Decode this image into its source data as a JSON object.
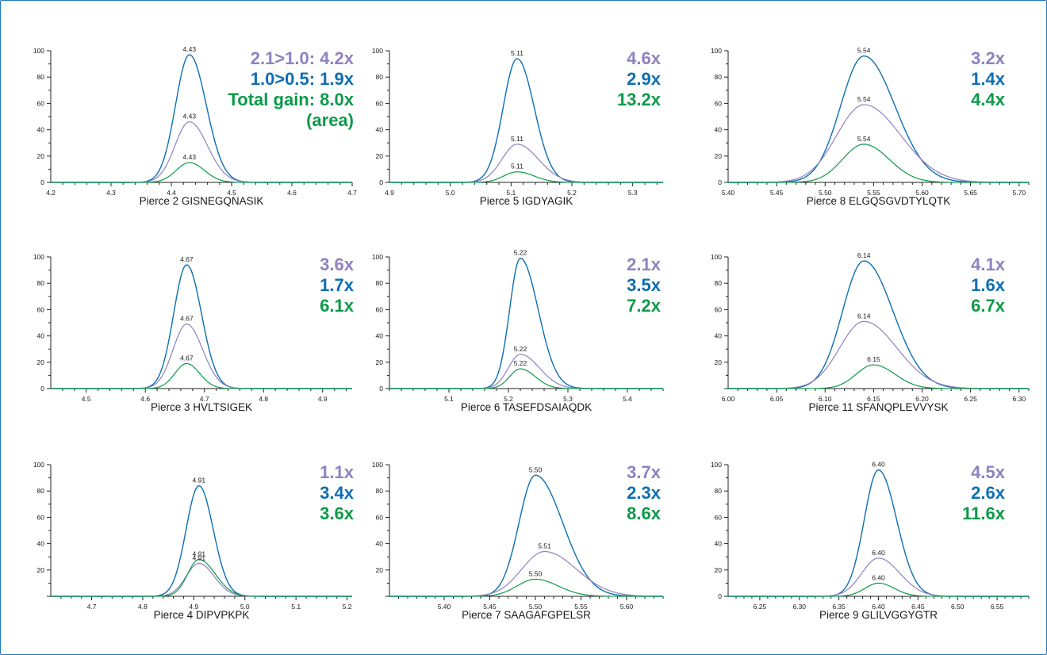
{
  "colors": {
    "purple": "#8f82c1",
    "blue": "#0d6fb3",
    "green": "#0c9a49",
    "axis": "#222222",
    "frame": "#1c78b8"
  },
  "legend_series_order": [
    "2.1>1.0",
    "1.0>0.5",
    "Total gain"
  ],
  "chart_data": [
    {
      "type": "line",
      "title": "Pierce 2 GISNEGQNASIK",
      "xlim": [
        4.2,
        4.7
      ],
      "xticks": [
        "4.2",
        "4.3",
        "4.4",
        "4.5",
        "4.6",
        "4.7"
      ],
      "ylim": [
        0,
        100
      ],
      "yticks": [
        "0",
        "20",
        "40",
        "60",
        "80",
        "100"
      ],
      "gains": [
        "2.1>1.0: 4.2x",
        "1.0>0.5: 1.9x",
        "Total gain: 8.0x",
        "(area)"
      ],
      "series": [
        {
          "color": "blue",
          "peak_rt": 4.43,
          "peak_height": 97,
          "width_left": 0.023,
          "width_right": 0.028,
          "label": "4.43"
        },
        {
          "color": "purple",
          "peak_rt": 4.43,
          "peak_height": 46,
          "width_left": 0.024,
          "width_right": 0.03,
          "label": "4.43"
        },
        {
          "color": "green",
          "peak_rt": 4.43,
          "peak_height": 15,
          "width_left": 0.022,
          "width_right": 0.025,
          "label": "4.43"
        }
      ]
    },
    {
      "type": "line",
      "title": "Pierce 5 IGDYAGIK",
      "xlim": [
        4.9,
        5.35
      ],
      "xticks": [
        "4.9",
        "5.0",
        "5.1",
        "5.2",
        "5.3"
      ],
      "ylim": [
        0,
        100
      ],
      "yticks": [
        "0",
        "20",
        "40",
        "60",
        "80",
        "100"
      ],
      "gains": [
        "4.6x",
        "2.9x",
        "13.2x"
      ],
      "series": [
        {
          "color": "blue",
          "peak_rt": 5.11,
          "peak_height": 94,
          "width_left": 0.023,
          "width_right": 0.028,
          "label": "5.11"
        },
        {
          "color": "purple",
          "peak_rt": 5.11,
          "peak_height": 29,
          "width_left": 0.025,
          "width_right": 0.035,
          "label": "5.11"
        },
        {
          "color": "green",
          "peak_rt": 5.11,
          "peak_height": 8,
          "width_left": 0.022,
          "width_right": 0.028,
          "label": "5.11"
        }
      ]
    },
    {
      "type": "line",
      "title": "Pierce 8 ELGQSGVDTYLQTK",
      "xlim": [
        5.4,
        5.71
      ],
      "xticks": [
        "5.40",
        "5.45",
        "5.50",
        "5.55",
        "5.60",
        "5.65",
        "5.70"
      ],
      "ylim": [
        0,
        100
      ],
      "yticks": [
        "0",
        "20",
        "40",
        "60",
        "80",
        "100"
      ],
      "gains": [
        "3.2x",
        "1.4x",
        "4.4x"
      ],
      "series": [
        {
          "color": "blue",
          "peak_rt": 5.54,
          "peak_height": 96,
          "width_left": 0.024,
          "width_right": 0.032,
          "label": "5.54"
        },
        {
          "color": "purple",
          "peak_rt": 5.54,
          "peak_height": 59,
          "width_left": 0.028,
          "width_right": 0.038,
          "label": "5.54"
        },
        {
          "color": "green",
          "peak_rt": 5.54,
          "peak_height": 29,
          "width_left": 0.022,
          "width_right": 0.026,
          "label": "5.54"
        }
      ]
    },
    {
      "type": "line",
      "title": "Pierce 3 HVLTSIGEK",
      "xlim": [
        4.44,
        4.95
      ],
      "xticks": [
        "4.5",
        "4.6",
        "4.7",
        "4.8",
        "4.9"
      ],
      "ylim": [
        0,
        100
      ],
      "yticks": [
        "0",
        "20",
        "40",
        "60",
        "80",
        "100"
      ],
      "gains": [
        "3.6x",
        "1.7x",
        "6.1x"
      ],
      "series": [
        {
          "color": "blue",
          "peak_rt": 4.67,
          "peak_height": 94,
          "width_left": 0.022,
          "width_right": 0.025,
          "label": "4.67"
        },
        {
          "color": "purple",
          "peak_rt": 4.67,
          "peak_height": 49,
          "width_left": 0.023,
          "width_right": 0.027,
          "label": "4.67"
        },
        {
          "color": "green",
          "peak_rt": 4.67,
          "peak_height": 19,
          "width_left": 0.02,
          "width_right": 0.022,
          "label": "4.67"
        }
      ]
    },
    {
      "type": "line",
      "title": "Pierce 6 TASEFDSAIAQDK",
      "xlim": [
        5.0,
        5.46
      ],
      "xticks": [
        "5.1",
        "5.2",
        "5.3",
        "5.4"
      ],
      "ylim": [
        0,
        100
      ],
      "yticks": [
        "0",
        "20",
        "40",
        "60",
        "80",
        "100"
      ],
      "gains": [
        "2.1x",
        "3.5x",
        "7.2x"
      ],
      "series": [
        {
          "color": "blue",
          "peak_rt": 5.22,
          "peak_height": 99,
          "width_left": 0.018,
          "width_right": 0.03,
          "label": "5.22"
        },
        {
          "color": "purple",
          "peak_rt": 5.22,
          "peak_height": 26,
          "width_left": 0.02,
          "width_right": 0.032,
          "label": "5.22"
        },
        {
          "color": "green",
          "peak_rt": 5.22,
          "peak_height": 15,
          "width_left": 0.018,
          "width_right": 0.025,
          "label": "5.22"
        }
      ]
    },
    {
      "type": "line",
      "title": "Pierce 11 SFANQPLEVVYSK",
      "xlim": [
        6.0,
        6.31
      ],
      "xticks": [
        "6.00",
        "6.05",
        "6.10",
        "6.15",
        "6.20",
        "6.25",
        "6.30"
      ],
      "ylim": [
        0,
        100
      ],
      "yticks": [
        "20",
        "40",
        "60",
        "80",
        "100"
      ],
      "gains": [
        "4.1x",
        "1.6x",
        "6.7x"
      ],
      "series": [
        {
          "color": "blue",
          "peak_rt": 6.14,
          "peak_height": 97,
          "width_left": 0.022,
          "width_right": 0.03,
          "label": "6.14"
        },
        {
          "color": "purple",
          "peak_rt": 6.14,
          "peak_height": 51,
          "width_left": 0.025,
          "width_right": 0.034,
          "label": "6.14"
        },
        {
          "color": "green",
          "peak_rt": 6.15,
          "peak_height": 18,
          "width_left": 0.018,
          "width_right": 0.022,
          "label": "6.15"
        }
      ]
    },
    {
      "type": "line",
      "title": "Pierce 4 DIPVPKPK",
      "xlim": [
        4.62,
        5.21
      ],
      "xticks": [
        "4.7",
        "4.8",
        "4.9",
        "5.0",
        "5.1",
        "5.2"
      ],
      "ylim": [
        0,
        100
      ],
      "yticks": [
        "20",
        "40",
        "60",
        "80",
        "100"
      ],
      "gains": [
        "1.1x",
        "3.4x",
        "3.6x"
      ],
      "series": [
        {
          "color": "blue",
          "peak_rt": 4.91,
          "peak_height": 84,
          "width_left": 0.025,
          "width_right": 0.028,
          "label": "4.91"
        },
        {
          "color": "purple",
          "peak_rt": 4.91,
          "peak_height": 25,
          "width_left": 0.025,
          "width_right": 0.03,
          "label": "4.91"
        },
        {
          "color": "green",
          "peak_rt": 4.91,
          "peak_height": 28,
          "width_left": 0.022,
          "width_right": 0.032,
          "label": "4.91"
        }
      ]
    },
    {
      "type": "line",
      "title": "Pierce 7 SAAGAFGPELSR",
      "xlim": [
        5.34,
        5.64
      ],
      "xticks": [
        "5.40",
        "5.45",
        "5.50",
        "5.55",
        "5.60"
      ],
      "ylim": [
        0,
        100
      ],
      "yticks": [
        "20",
        "40",
        "60",
        "80",
        "100"
      ],
      "gains": [
        "3.7x",
        "2.3x",
        "8.6x"
      ],
      "series": [
        {
          "color": "blue",
          "peak_rt": 5.5,
          "peak_height": 92,
          "width_left": 0.018,
          "width_right": 0.03,
          "label": "5.50"
        },
        {
          "color": "purple",
          "peak_rt": 5.51,
          "peak_height": 34,
          "width_left": 0.025,
          "width_right": 0.035,
          "label": "5.51"
        },
        {
          "color": "green",
          "peak_rt": 5.5,
          "peak_height": 13,
          "width_left": 0.02,
          "width_right": 0.025,
          "label": "5.50"
        }
      ]
    },
    {
      "type": "line",
      "title": "Pierce 9 GLILVGGYGTR",
      "xlim": [
        6.21,
        6.59
      ],
      "xticks": [
        "6.25",
        "6.30",
        "6.35",
        "6.40",
        "6.45",
        "6.50",
        "6.55"
      ],
      "ylim": [
        0,
        100
      ],
      "yticks": [
        "0",
        "20",
        "40",
        "60",
        "80",
        "100"
      ],
      "gains": [
        "4.5x",
        "2.6x",
        "11.6x"
      ],
      "series": [
        {
          "color": "blue",
          "peak_rt": 6.4,
          "peak_height": 96,
          "width_left": 0.018,
          "width_right": 0.023,
          "label": "6.40"
        },
        {
          "color": "purple",
          "peak_rt": 6.4,
          "peak_height": 29,
          "width_left": 0.021,
          "width_right": 0.027,
          "label": "6.40"
        },
        {
          "color": "green",
          "peak_rt": 6.4,
          "peak_height": 10,
          "width_left": 0.017,
          "width_right": 0.02,
          "label": "6.40"
        }
      ]
    }
  ]
}
